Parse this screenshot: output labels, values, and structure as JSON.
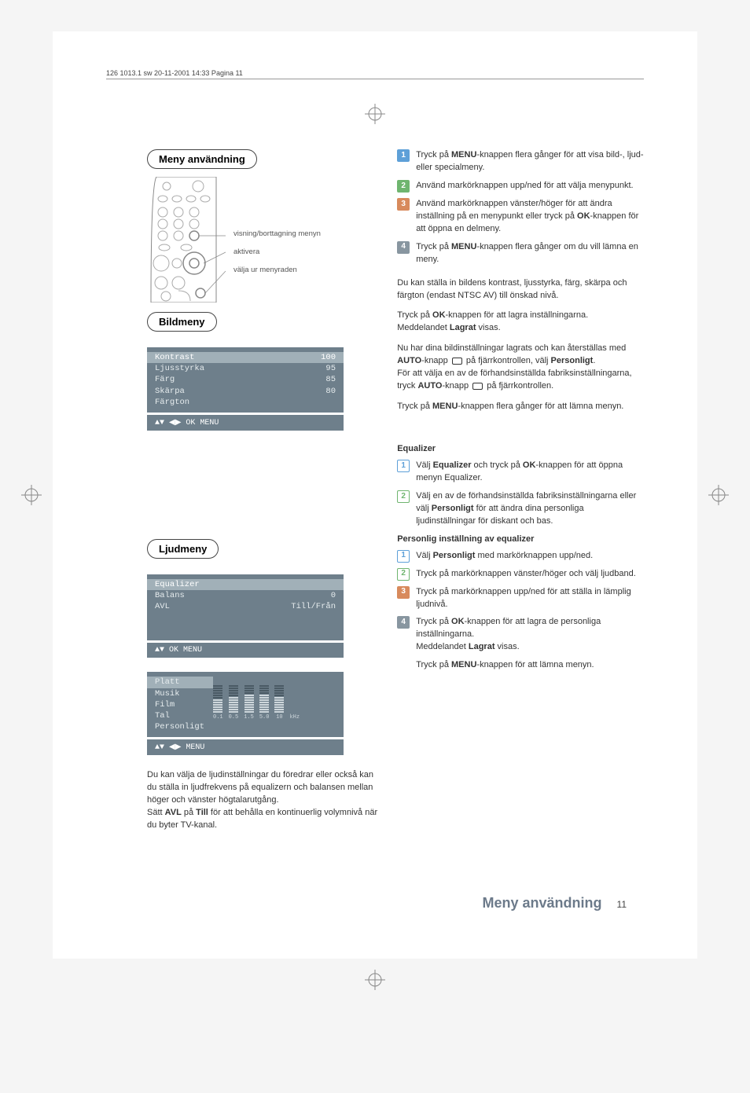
{
  "header": "126 1013.1 sw  20-11-2001  14:33  Pagina 11",
  "section1_title": "Meny användning",
  "section2_title": "Bildmeny",
  "section3_title": "Ljudmeny",
  "remote_labels": {
    "l1": "visning/borttagning menyn",
    "l2": "aktivera",
    "l3": "välja ur menyraden"
  },
  "bildmeny": {
    "rows": [
      {
        "label": "Kontrast",
        "val": "100"
      },
      {
        "label": "Ljusstyrka",
        "val": "95"
      },
      {
        "label": "Färg",
        "val": "85"
      },
      {
        "label": "Skärpa",
        "val": "80"
      },
      {
        "label": "Färgton",
        "val": ""
      }
    ],
    "nav": "▲▼ ◀▶   OK MENU"
  },
  "ljudmeny": {
    "rows": [
      {
        "label": "Equalizer",
        "val": ""
      },
      {
        "label": "Balans",
        "val": "0"
      },
      {
        "label": "AVL",
        "val": "Till/Från"
      }
    ],
    "nav": "▲▼ OK MENU",
    "eq_items": [
      "Platt",
      "Musik",
      "Film",
      "Tal",
      "Personligt"
    ],
    "eq_freqs": [
      "0.1",
      "0.5",
      "1.5",
      "5.0",
      "10",
      "kHz"
    ],
    "eq_nav": "▲▼ ◀▶   MENU"
  },
  "ljud_body": {
    "p1": "Du kan välja de ljudinställningar du föredrar eller också kan du ställa in ljudfrekvens på equalizern och balansen mellan höger och vänster högtalarutgång.",
    "p2a": "Sätt ",
    "p2b": "AVL",
    "p2c": " på ",
    "p2d": "Till",
    "p2e": " för att behålla en kontinuerlig volymnivå när du byter TV-kanal."
  },
  "right_steps1": {
    "s1a": "Tryck på ",
    "s1b": "MENU",
    "s1c": "-knappen flera gånger för att visa bild-, ljud- eller specialmeny.",
    "s2": "Använd markörknappen upp/ned för att välja menypunkt.",
    "s3a": "Använd markörknappen vänster/höger för att ändra inställning på en menypunkt eller tryck på ",
    "s3b": "OK",
    "s3c": "-knappen för att öppna en delmeny.",
    "s4a": "Tryck på ",
    "s4b": "MENU",
    "s4c": "-knappen flera gånger om du vill lämna en meny."
  },
  "right_bild": {
    "p1": "Du kan ställa in bildens kontrast, ljusstyrka, färg, skärpa och färgton (endast NTSC AV) till önskad nivå.",
    "p2a": "Tryck på ",
    "p2b": "OK",
    "p2c": "-knappen för att lagra inställningarna.",
    "p2d": "Meddelandet ",
    "p2e": "Lagrat",
    "p2f": " visas.",
    "p3a": "Nu har dina bildinställningar lagrats och kan återställas med ",
    "p3b": "AUTO",
    "p3c": "-knapp ",
    "p3d": " på fjärrkontrollen, välj ",
    "p3e": "Personligt",
    "p3f": ".",
    "p4a": "För att välja en av de förhandsinställda fabriksinställningarna, tryck ",
    "p4b": "AUTO",
    "p4c": "-knapp ",
    "p4d": " på fjärrkontrollen.",
    "p5a": "Tryck på ",
    "p5b": "MENU",
    "p5c": "-knappen flera gånger för att lämna menyn."
  },
  "right_eq": {
    "heading": "Equalizer",
    "s1a": "Välj ",
    "s1b": "Equalizer",
    "s1c": " och tryck på ",
    "s1d": "OK",
    "s1e": "-knappen för att öppna menyn Equalizer.",
    "s2a": "Välj en av de förhandsinställda fabriksinställningarna eller välj ",
    "s2b": "Personligt",
    "s2c": " för att ändra dina personliga ljudinställningar för diskant och bas.",
    "heading2": "Personlig inställning av equalizer",
    "p1a": "Välj ",
    "p1b": "Personligt",
    "p1c": " med markörknappen upp/ned.",
    "p2": "Tryck på markörknappen vänster/höger och välj ljudband.",
    "p3": "Tryck på markörknappen upp/ned för att ställa in lämplig ljudnivå.",
    "p4a": "Tryck på ",
    "p4b": "OK",
    "p4c": "-knappen för att lagra de personliga inställningarna.",
    "p4d": "Meddelandet ",
    "p4e": "Lagrat",
    "p4f": " visas.",
    "p5a": "Tryck på ",
    "p5b": "MENU",
    "p5c": "-knappen för att lämna menyn."
  },
  "footer": {
    "title": "Meny användning",
    "page": "11"
  },
  "colors": {
    "badge1": "#5ea0d8",
    "badge2": "#6fb56f",
    "badge3": "#d88a5c",
    "badge4": "#8896a0",
    "panel_bg": "#6e7f8b",
    "panel_sel": "#a1b0b8",
    "panel_text": "#e6ecee",
    "footer_text": "#6c7a8a"
  },
  "eq_bar_heights": [
    6,
    7,
    8,
    8,
    7,
    6
  ]
}
